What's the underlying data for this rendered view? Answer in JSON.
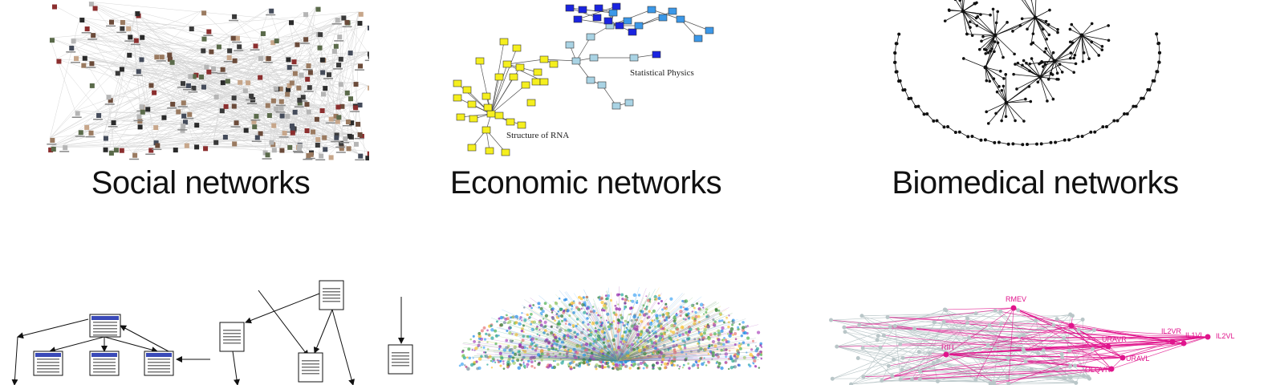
{
  "captions": {
    "social": "Social networks",
    "economic": "Economic networks",
    "biomedical": "Biomedical networks"
  },
  "economic_labels": {
    "statistical_physics": "Statistical Physics",
    "structure_of_rna": "Structure of RNA"
  },
  "neuron_labels": [
    "RMEV",
    "RIH",
    "URAVR",
    "URAVL",
    "IL2VR",
    "IL1VL",
    "IL2VL",
    "OLQVR"
  ],
  "colors": {
    "yellow_node": "#f5ef1e",
    "light_blue_node": "#a9d3e4",
    "medium_blue_node": "#3c98e8",
    "dark_blue_node": "#1a24e0",
    "neuron_pink": "#e0148c",
    "neuron_gray": "#b9c6c8",
    "social_edge": "#d6d6d6",
    "caption_text": "#111111"
  },
  "icons": {
    "web_page": "document-icon"
  }
}
